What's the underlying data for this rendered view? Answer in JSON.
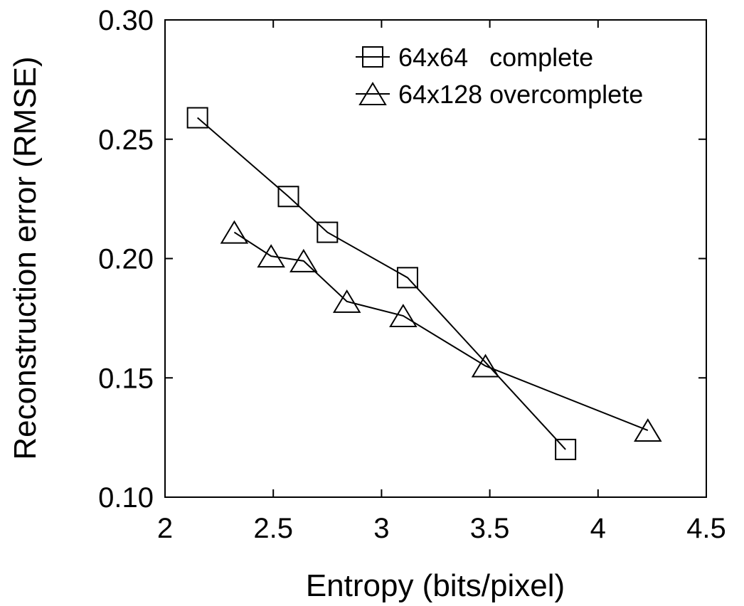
{
  "chart_data": {
    "type": "line",
    "title": "",
    "xlabel": "Entropy (bits/pixel)",
    "ylabel": "Reconstruction error (RMSE)",
    "xlim": [
      2,
      4.5
    ],
    "ylim": [
      0.1,
      0.3
    ],
    "x_ticks": [
      "2",
      "2.5",
      "3",
      "3.5",
      "4",
      "4.5"
    ],
    "y_ticks": [
      "0.10",
      "0.15",
      "0.20",
      "0.25",
      "0.30"
    ],
    "grid": false,
    "legend_position": "top-right",
    "series": [
      {
        "name": "64x64   complete",
        "marker": "square",
        "color": "#000000",
        "x": [
          2.15,
          2.57,
          2.75,
          3.12,
          3.85
        ],
        "y": [
          0.259,
          0.226,
          0.211,
          0.192,
          0.12
        ]
      },
      {
        "name": "64x128 overcomplete",
        "marker": "triangle",
        "color": "#000000",
        "x": [
          2.32,
          2.49,
          2.64,
          2.84,
          3.1,
          3.48,
          4.23
        ],
        "y": [
          0.211,
          0.201,
          0.199,
          0.182,
          0.176,
          0.155,
          0.128
        ]
      }
    ]
  }
}
